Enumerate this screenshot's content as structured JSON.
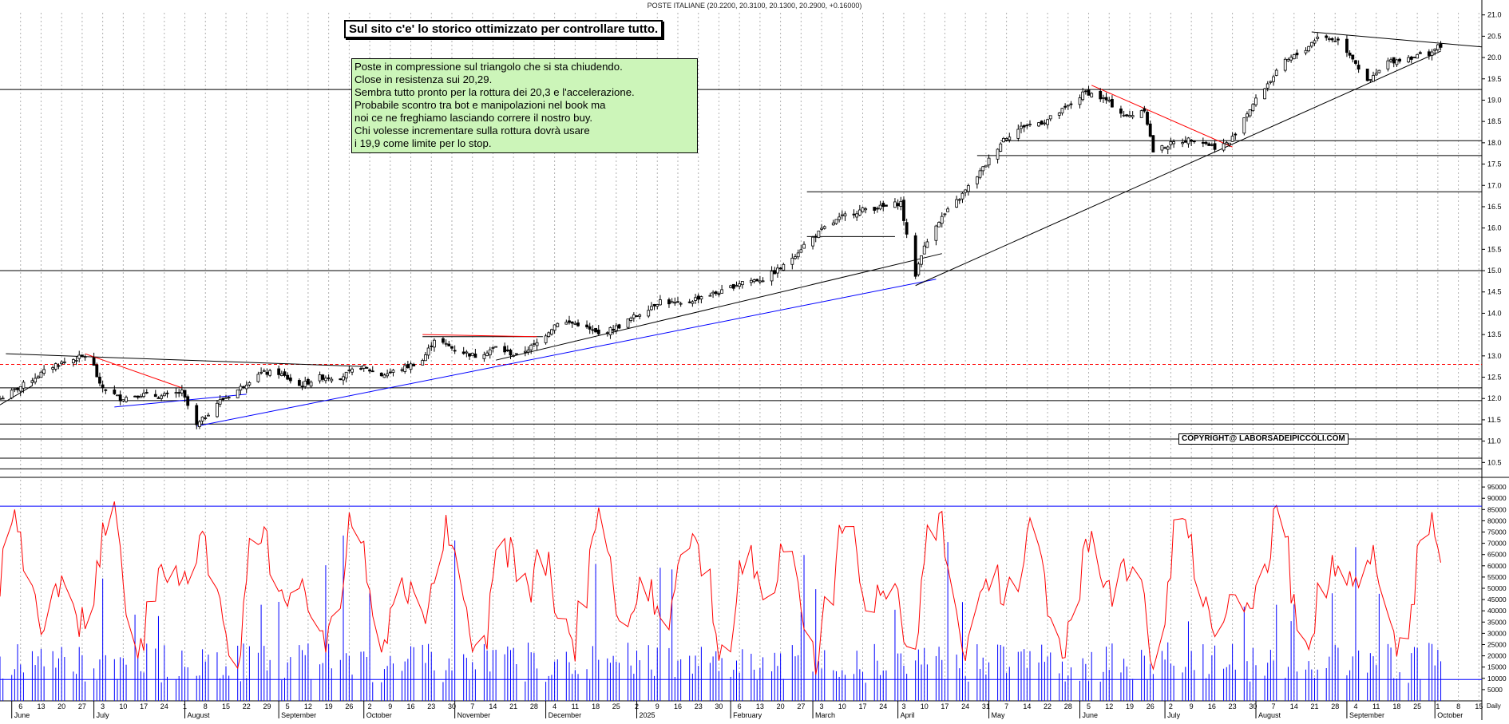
{
  "header": {
    "title": "POSTE ITALIANE (20.2200, 20.3100, 20.1300, 20.2900, +0.16000)"
  },
  "banner": "Sul sito c'e' lo storico ottimizzato per controllare tutto.",
  "note_lines": [
    "Poste in compressione sul triangolo che si sta chiudendo.",
    "Close in resistenza sui 20,29.",
    "Sembra tutto pronto per la rottura dei 20,3 e l'accelerazione.",
    "Probabile scontro tra bot e manipolazioni nel book ma",
    "noi ce ne freghiamo lasciando correre il nostro buy.",
    "Chi volesse incrementare sulla rottura dovrà usare",
    "i 19,9 come limite per lo stop."
  ],
  "copyright": "COPYRIGHT@ LABORSADEIPICCOLI.COM",
  "colors": {
    "candle": "#000000",
    "trendline_black": "#000000",
    "trendline_red": "#ff0000",
    "trendline_blue": "#0000ff",
    "oscillator": "#ff0000",
    "volume": "#0000ff",
    "note_bg": "#ccf5b9"
  },
  "chart_data": [
    {
      "type": "candlestick",
      "title": "POSTE ITALIANE (20.2200, 20.3100, 20.1300, 20.2900, +0.16000)",
      "ylim": [
        10.3,
        21.2
      ],
      "y_ticks": [
        "10.5",
        "11.0",
        "11.5",
        "12.0",
        "12.5",
        "13.0",
        "13.5",
        "14.0",
        "14.5",
        "15.0",
        "15.5",
        "16.0",
        "16.5",
        "17.0",
        "17.5",
        "18.0",
        "18.5",
        "19.0",
        "19.5",
        "20.0",
        "20.5",
        "21.0"
      ],
      "grid": "vertical dotted",
      "x_range": [
        "2024-05-30",
        "2025-10-17"
      ],
      "close_path": [
        [
          "2024-05-30",
          12.0
        ],
        [
          "2024-06-03",
          12.15
        ],
        [
          "2024-06-11",
          12.5
        ],
        [
          "2024-06-18",
          12.8
        ],
        [
          "2024-06-28",
          13.0
        ],
        [
          "2024-07-01",
          12.75
        ],
        [
          "2024-07-03",
          12.3
        ],
        [
          "2024-07-10",
          12.0
        ],
        [
          "2024-07-17",
          12.1
        ],
        [
          "2024-07-24",
          12.05
        ],
        [
          "2024-07-31",
          12.15
        ],
        [
          "2024-08-05",
          11.35
        ],
        [
          "2024-08-12",
          11.9
        ],
        [
          "2024-08-19",
          12.2
        ],
        [
          "2024-08-26",
          12.6
        ],
        [
          "2024-09-02",
          12.6
        ],
        [
          "2024-09-09",
          12.3
        ],
        [
          "2024-09-16",
          12.5
        ],
        [
          "2024-09-23",
          12.5
        ],
        [
          "2024-09-30",
          12.75
        ],
        [
          "2024-10-07",
          12.55
        ],
        [
          "2024-10-14",
          12.7
        ],
        [
          "2024-10-21",
          12.9
        ],
        [
          "2024-10-25",
          13.4
        ],
        [
          "2024-11-01",
          13.15
        ],
        [
          "2024-11-08",
          13.0
        ],
        [
          "2024-11-15",
          13.2
        ],
        [
          "2024-11-22",
          13.0
        ],
        [
          "2024-11-29",
          13.3
        ],
        [
          "2024-12-06",
          13.8
        ],
        [
          "2024-12-13",
          13.75
        ],
        [
          "2024-12-20",
          13.5
        ],
        [
          "2024-12-27",
          13.7
        ],
        [
          "2025-01-03",
          14.0
        ],
        [
          "2025-01-10",
          14.3
        ],
        [
          "2025-01-17",
          14.2
        ],
        [
          "2025-01-24",
          14.4
        ],
        [
          "2025-01-31",
          14.5
        ],
        [
          "2025-02-07",
          14.75
        ],
        [
          "2025-02-14",
          14.8
        ],
        [
          "2025-02-21",
          15.1
        ],
        [
          "2025-02-28",
          15.6
        ],
        [
          "2025-03-07",
          16.0
        ],
        [
          "2025-03-14",
          16.3
        ],
        [
          "2025-03-21",
          16.45
        ],
        [
          "2025-03-28",
          16.5
        ],
        [
          "2025-04-02",
          16.6
        ],
        [
          "2025-04-04",
          15.8
        ],
        [
          "2025-04-07",
          14.9
        ],
        [
          "2025-04-09",
          15.4
        ],
        [
          "2025-04-14",
          16.1
        ],
        [
          "2025-04-22",
          16.7
        ],
        [
          "2025-04-30",
          17.4
        ],
        [
          "2025-05-07",
          18.1
        ],
        [
          "2025-05-14",
          18.4
        ],
        [
          "2025-05-21",
          18.5
        ],
        [
          "2025-05-28",
          18.8
        ],
        [
          "2025-06-04",
          19.2
        ],
        [
          "2025-06-11",
          19.0
        ],
        [
          "2025-06-18",
          18.6
        ],
        [
          "2025-06-24",
          18.8
        ],
        [
          "2025-06-27",
          17.8
        ],
        [
          "2025-07-04",
          18.0
        ],
        [
          "2025-07-11",
          18.1
        ],
        [
          "2025-07-18",
          17.9
        ],
        [
          "2025-07-23",
          18.0
        ],
        [
          "2025-07-28",
          18.6
        ],
        [
          "2025-08-04",
          19.3
        ],
        [
          "2025-08-11",
          19.9
        ],
        [
          "2025-08-18",
          20.2
        ],
        [
          "2025-08-22",
          20.5
        ],
        [
          "2025-08-29",
          20.4
        ],
        [
          "2025-09-03",
          20.0
        ],
        [
          "2025-09-08",
          19.4
        ],
        [
          "2025-09-15",
          19.9
        ],
        [
          "2025-09-22",
          20.0
        ],
        [
          "2025-09-29",
          20.1
        ],
        [
          "2025-10-03",
          20.29
        ]
      ],
      "horizontal_levels": [
        {
          "y": 10.35,
          "style": "solid"
        },
        {
          "y": 10.6,
          "style": "solid"
        },
        {
          "y": 11.05,
          "style": "solid"
        },
        {
          "y": 11.4,
          "style": "solid"
        },
        {
          "y": 11.95,
          "style": "solid"
        },
        {
          "y": 12.25,
          "style": "solid"
        },
        {
          "y": 12.8,
          "style": "dashed-red"
        },
        {
          "y": 15.0,
          "style": "solid"
        },
        {
          "y": 19.25,
          "style": "solid"
        }
      ],
      "segments": [
        {
          "from": [
            "2025-03-01",
            15.8
          ],
          "to": [
            "2025-03-31",
            15.8
          ],
          "color": "black"
        },
        {
          "from": [
            "2025-03-01",
            16.85
          ],
          "to": [
            "2025-10-17",
            16.85
          ],
          "color": "black"
        },
        {
          "from": [
            "2025-04-28",
            17.7
          ],
          "to": [
            "2025-10-17",
            17.7
          ],
          "color": "black"
        },
        {
          "from": [
            "2025-05-06",
            18.05
          ],
          "to": [
            "2025-10-17",
            18.05
          ],
          "color": "black"
        },
        {
          "from": [
            "2024-10-21",
            13.45
          ],
          "to": [
            "2024-12-01",
            13.45
          ],
          "color": "black"
        },
        {
          "from": [
            "2024-06-01",
            13.05
          ],
          "to": [
            "2024-10-01",
            12.75
          ],
          "color": "black"
        },
        {
          "from": [
            "2024-06-28",
            13.05
          ],
          "to": [
            "2024-07-31",
            12.25
          ],
          "color": "red"
        },
        {
          "from": [
            "2024-07-08",
            11.8
          ],
          "to": [
            "2024-08-22",
            12.1
          ],
          "color": "blue"
        },
        {
          "from": [
            "2024-08-05",
            11.35
          ],
          "to": [
            "2025-04-14",
            14.8
          ],
          "color": "blue"
        },
        {
          "from": [
            "2024-05-30",
            11.85
          ],
          "to": [
            "2024-06-10",
            12.3
          ],
          "color": "black"
        },
        {
          "from": [
            "2024-10-21",
            13.5
          ],
          "to": [
            "2024-11-29",
            13.45
          ],
          "color": "red"
        },
        {
          "from": [
            "2024-11-15",
            12.9
          ],
          "to": [
            "2025-04-16",
            15.4
          ],
          "color": "black"
        },
        {
          "from": [
            "2025-04-07",
            14.65
          ],
          "to": [
            "2025-10-03",
            20.15
          ],
          "color": "black"
        },
        {
          "from": [
            "2025-06-06",
            19.35
          ],
          "to": [
            "2025-07-24",
            17.9
          ],
          "color": "red"
        },
        {
          "from": [
            "2025-08-20",
            20.6
          ],
          "to": [
            "2025-10-17",
            20.25
          ],
          "color": "black"
        }
      ]
    },
    {
      "type": "line",
      "series": [
        {
          "values_desc": "oscillator (red)"
        }
      ],
      "ylim": [
        0,
        100000
      ],
      "y_ticks": [
        "5000",
        "10000",
        "15000",
        "20000",
        "25000",
        "30000",
        "35000",
        "40000",
        "45000",
        "50000",
        "55000",
        "60000",
        "65000",
        "70000",
        "75000",
        "80000",
        "85000",
        "90000",
        "95000"
      ],
      "levels": [
        86500,
        9500
      ],
      "x_tick_labels": [
        "6",
        "13",
        "20",
        "27",
        "3",
        "10",
        "17",
        "24",
        "1",
        "8",
        "15",
        "22",
        "29",
        "5",
        "12",
        "19",
        "26",
        "2",
        "9",
        "16",
        "23",
        "30",
        "7",
        "14",
        "21",
        "28",
        "4",
        "11",
        "18",
        "25",
        "2",
        "9",
        "16",
        "23",
        "30",
        "6",
        "13",
        "20",
        "27",
        "3",
        "10",
        "17",
        "24",
        "3",
        "10",
        "17",
        "24",
        "31",
        "7",
        "14",
        "22",
        "28",
        "5",
        "12",
        "19",
        "26",
        "2",
        "9",
        "16",
        "23",
        "30",
        "7",
        "14",
        "21",
        "28",
        "4",
        "11",
        "18",
        "25",
        "1",
        "8",
        "15",
        "22",
        "29",
        "6",
        "13"
      ],
      "x_month_labels": [
        "June",
        "July",
        "August",
        "September",
        "October",
        "November",
        "December",
        "2025",
        "February",
        "March",
        "April",
        "May",
        "June",
        "July",
        "August",
        "September",
        "October"
      ],
      "x_axis_units": "Daily"
    }
  ]
}
